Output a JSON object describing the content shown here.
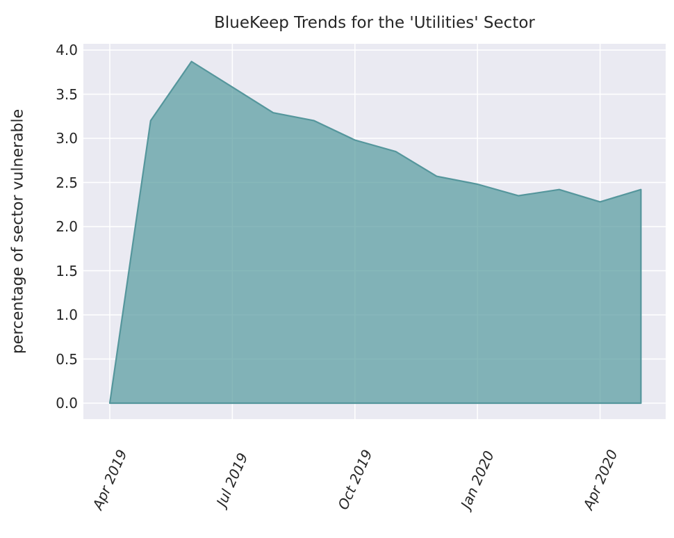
{
  "figure": {
    "background": "#ffffff"
  },
  "chart_data": {
    "type": "area",
    "title": "BlueKeep Trends for the 'Utilities' Sector",
    "xlabel": "",
    "ylabel": "percentage of sector vulnerable",
    "x": [
      "Apr 2019",
      "May 2019",
      "Jun 2019",
      "Jul 2019",
      "Aug 2019",
      "Sep 2019",
      "Oct 2019",
      "Nov 2019",
      "Dec 2019",
      "Jan 2020",
      "Feb 2020",
      "Mar 2020",
      "Apr 2020",
      "May 2020"
    ],
    "values": [
      0.0,
      3.2,
      3.87,
      3.58,
      3.29,
      3.2,
      2.98,
      2.85,
      2.57,
      2.48,
      2.35,
      2.42,
      2.28,
      2.42
    ],
    "xtick_labels": [
      "Apr 2019",
      "Jul 2019",
      "Oct 2019",
      "Jan 2020",
      "Apr 2020"
    ],
    "xtick_indices": [
      0,
      3,
      6,
      9,
      12
    ],
    "ytick_labels": [
      "0.0",
      "0.5",
      "1.0",
      "1.5",
      "2.0",
      "2.5",
      "3.0",
      "3.5",
      "4.0"
    ],
    "ylim": [
      -0.18,
      4.07
    ],
    "grid": true,
    "legend": false,
    "colors": {
      "plot_background": "#eaeaf2",
      "gridline": "#ffffff",
      "area_line": "#55969c",
      "area_fill": "#5b9da1",
      "area_fill_opacity": 0.73,
      "text": "#262626"
    }
  }
}
